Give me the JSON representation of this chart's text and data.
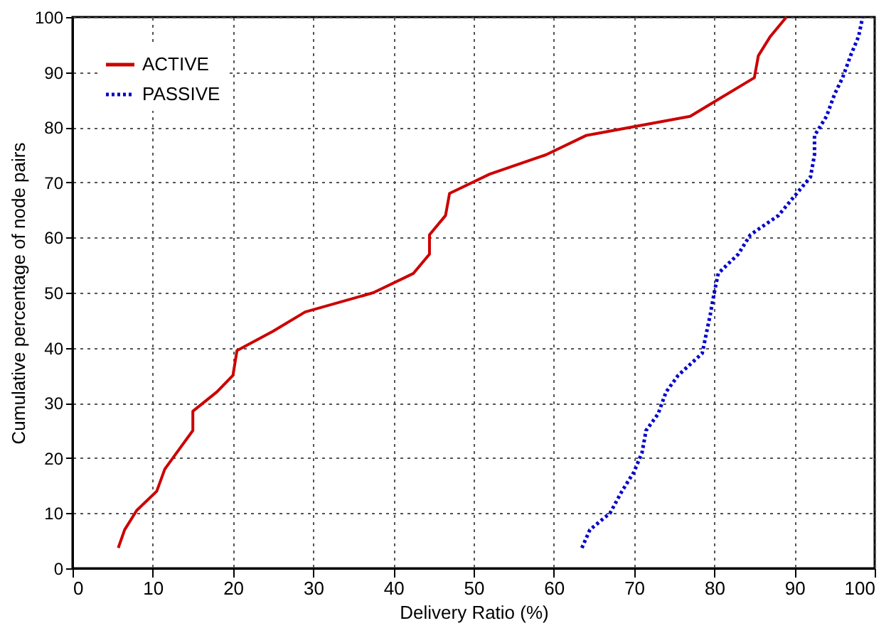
{
  "chart_data": {
    "type": "line",
    "xlabel": "Delivery Ratio (%)",
    "ylabel": "Cumulative percentage of node pairs",
    "xlim": [
      0,
      100
    ],
    "ylim": [
      0,
      100
    ],
    "xticks": [
      0,
      10,
      20,
      30,
      40,
      50,
      60,
      70,
      80,
      90,
      100
    ],
    "yticks": [
      0,
      10,
      20,
      30,
      40,
      50,
      60,
      70,
      80,
      90,
      100
    ],
    "grid": true,
    "legend": "top left",
    "series": [
      {
        "name": "ACTIVE",
        "color": "#cc0000",
        "line_style": "solid",
        "x": [
          5.7,
          6.5,
          8,
          10.5,
          11.5,
          15,
          15,
          18,
          20,
          20.5,
          25,
          29,
          37.5,
          42.5,
          44.5,
          44.5,
          46.5,
          47,
          52,
          59,
          64,
          77,
          81,
          85,
          85.5,
          87,
          89
        ],
        "values": [
          3.7,
          7,
          10.5,
          14,
          18,
          25,
          28.5,
          32,
          35,
          39.5,
          43,
          46.5,
          50,
          53.5,
          57,
          60.5,
          64,
          68,
          71.5,
          75,
          78.5,
          82,
          85.5,
          89,
          93,
          96.5,
          100
        ]
      },
      {
        "name": "PASSIVE",
        "color": "#0000cc",
        "line_style": "dotted",
        "x": [
          63.5,
          64.5,
          67,
          68.5,
          70,
          71,
          71.5,
          73,
          74,
          75.5,
          78.5,
          79,
          79.5,
          80,
          80.5,
          83,
          84.5,
          88,
          90,
          92,
          92.5,
          92.5,
          94,
          95,
          96,
          97,
          98,
          98.5
        ],
        "values": [
          3.7,
          7,
          10,
          14,
          17.5,
          21,
          25,
          28,
          32,
          35,
          39,
          42.5,
          46,
          50,
          53.5,
          57,
          60.5,
          64,
          67.5,
          71,
          75,
          78.5,
          82,
          86,
          89,
          93,
          96.5,
          100
        ]
      }
    ]
  }
}
